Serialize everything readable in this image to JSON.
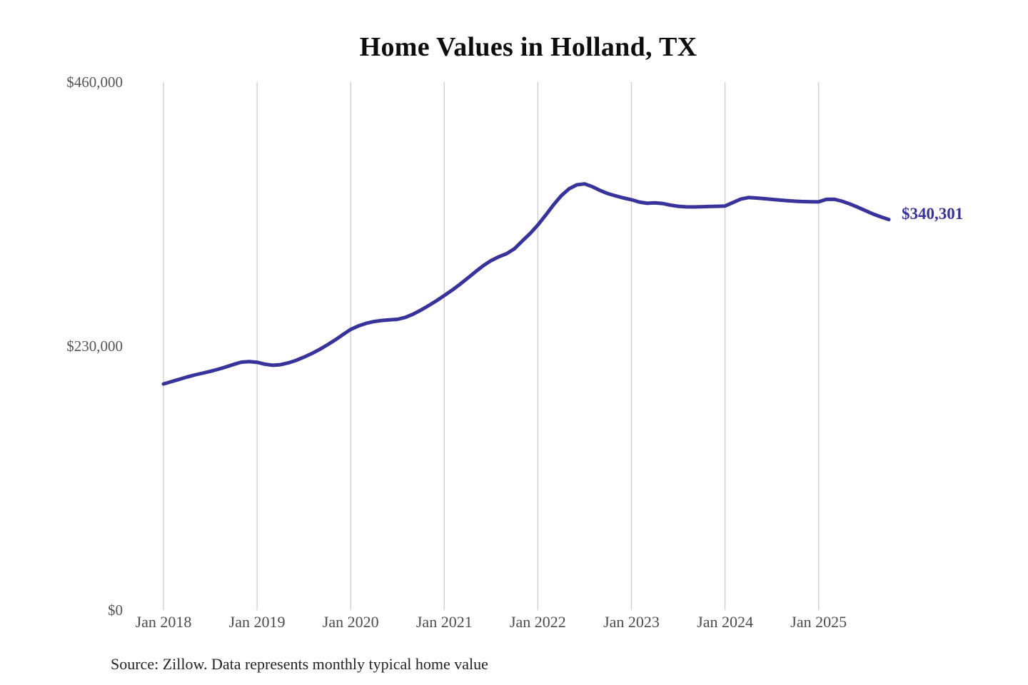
{
  "title": "Home Values in Holland, TX",
  "source_note": "Source: Zillow. Data represents monthly typical home value",
  "end_label": "$340,301",
  "colors": {
    "line": "#38329b",
    "annotation": "#38329b",
    "grid": "#cccccc",
    "axis_text": "#545454",
    "title_text": "#0d0d0d",
    "source_text": "#222222",
    "background": "#ffffff"
  },
  "chart_data": {
    "type": "line",
    "title": "Home Values in Holland, TX",
    "unit": "USD",
    "frequency": "monthly",
    "x_start": "2018-01",
    "x_end": "2025-10",
    "xlabel": "",
    "ylabel": "",
    "ylim": [
      0,
      460000
    ],
    "grid": "vertical-only",
    "legend": "none",
    "x_tick_labels": [
      "Jan 2018",
      "Jan 2019",
      "Jan 2020",
      "Jan 2021",
      "Jan 2022",
      "Jan 2023",
      "Jan 2024",
      "Jan 2025"
    ],
    "x_tick_month_indices": [
      0,
      12,
      24,
      36,
      48,
      60,
      72,
      84
    ],
    "y_ticks": [
      {
        "value": 0,
        "label": "$0"
      },
      {
        "value": 230000,
        "label": "$230,000"
      },
      {
        "value": 460000,
        "label": "$460,000"
      }
    ],
    "end_label": "$340,301",
    "final_value": 340301,
    "series": [
      {
        "name": "Typical home value",
        "values": [
          197000,
          199000,
          201000,
          203000,
          204800,
          206400,
          208000,
          209800,
          211800,
          214000,
          216000,
          216500,
          215900,
          214200,
          213300,
          213800,
          215300,
          217500,
          220300,
          223500,
          227000,
          231000,
          235300,
          240000,
          244500,
          247500,
          249800,
          251400,
          252300,
          252800,
          253300,
          255000,
          257800,
          261300,
          265300,
          269500,
          274000,
          278700,
          283800,
          289200,
          294700,
          300000,
          304500,
          307800,
          310500,
          314800,
          321500,
          328000,
          335500,
          344000,
          353000,
          361000,
          367000,
          370500,
          371300,
          368800,
          365500,
          362800,
          360800,
          359000,
          357500,
          355500,
          354400,
          354800,
          354200,
          352800,
          351800,
          351300,
          351200,
          351400,
          351600,
          351800,
          352000,
          355000,
          358000,
          359400,
          359000,
          358400,
          357800,
          357200,
          356600,
          356200,
          355900,
          355700,
          355600,
          357800,
          357900,
          356200,
          353800,
          351000,
          348000,
          345000,
          342500,
          340301
        ]
      }
    ]
  }
}
